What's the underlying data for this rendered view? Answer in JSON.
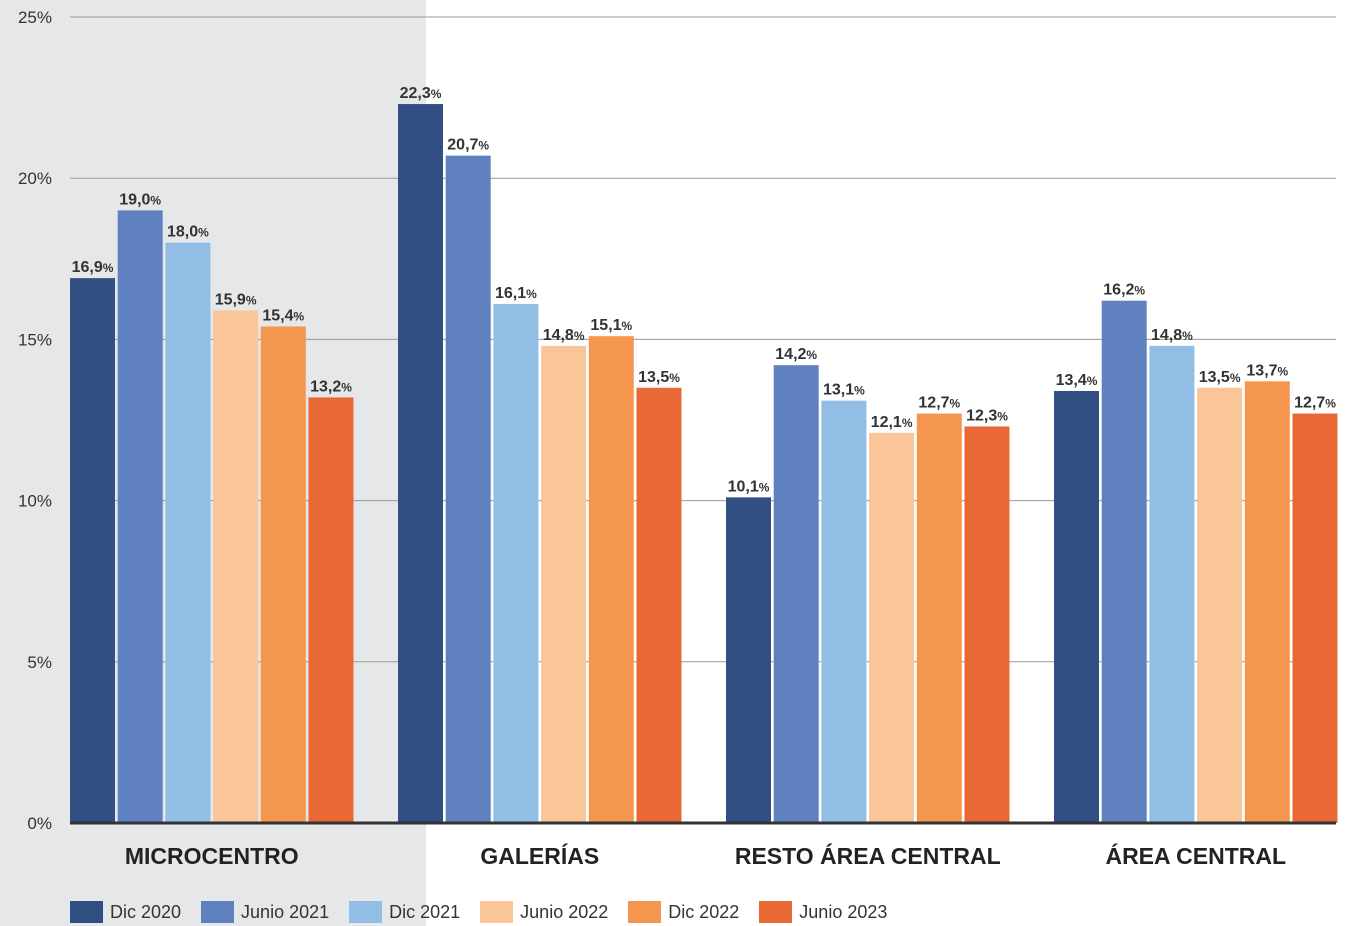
{
  "chart_data": {
    "type": "bar",
    "title": "",
    "xlabel": "",
    "ylabel": "",
    "ylim": [
      0,
      25
    ],
    "y_ticks": [
      "0%",
      "5%",
      "10%",
      "15%",
      "20%",
      "25%"
    ],
    "grid": true,
    "legend_position": "bottom",
    "categories": [
      "MICROCENTRO",
      "GALERÍAS",
      "RESTO ÁREA CENTRAL",
      "ÁREA CENTRAL"
    ],
    "highlighted_category": "MICROCENTRO",
    "highlight_color": "#e6e7e8",
    "percent_suffix": "%",
    "series": [
      {
        "name": "Dic 2020",
        "color": "#324f84",
        "values": [
          16.9,
          22.3,
          10.1,
          13.4
        ],
        "labels": [
          "16,9",
          "22,3",
          "10,1",
          "13,4"
        ]
      },
      {
        "name": "Junio 2021",
        "color": "#5f81bf",
        "values": [
          19.0,
          20.7,
          14.2,
          16.2
        ],
        "labels": [
          "19,0",
          "20,7",
          "14,2",
          "16,2"
        ]
      },
      {
        "name": "Dic 2021",
        "color": "#92bee5",
        "values": [
          18.0,
          16.1,
          13.1,
          14.8
        ],
        "labels": [
          "18,0",
          "16,1",
          "13,1",
          "14,8"
        ]
      },
      {
        "name": "Junio 2022",
        "color": "#fbc59a",
        "values": [
          15.9,
          14.8,
          12.1,
          13.5
        ],
        "labels": [
          "15,9",
          "14,8",
          "12,1",
          "13,5"
        ]
      },
      {
        "name": "Dic 2022",
        "color": "#f5964f",
        "values": [
          15.4,
          15.1,
          12.7,
          13.7
        ],
        "labels": [
          "15,4",
          "15,1",
          "12,7",
          "13,7"
        ]
      },
      {
        "name": "Junio 2023",
        "color": "#e86836",
        "values": [
          13.2,
          13.5,
          12.3,
          12.7
        ],
        "labels": [
          "13,2",
          "13,5",
          "12,3",
          "12,7"
        ]
      }
    ]
  }
}
